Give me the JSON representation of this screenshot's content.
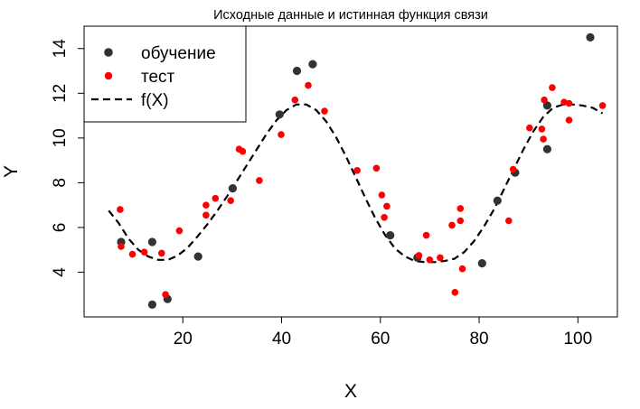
{
  "chart_data": {
    "type": "scatter",
    "title": "Исходные данные и истинная функция связи",
    "xlabel": "X",
    "ylabel": "Y",
    "xlim": [
      0,
      108
    ],
    "ylim": [
      2,
      15
    ],
    "xticks": [
      20,
      40,
      60,
      80,
      100
    ],
    "yticks": [
      4,
      6,
      8,
      10,
      12,
      14
    ],
    "grid": false,
    "legend_position": "top-left",
    "series": [
      {
        "name": "обучение",
        "kind": "points",
        "color": "#333333",
        "points": [
          [
            7.5,
            5.35
          ],
          [
            13.8,
            5.35
          ],
          [
            13.8,
            2.55
          ],
          [
            16.9,
            2.8
          ],
          [
            23.1,
            4.7
          ],
          [
            30.1,
            7.75
          ],
          [
            39.6,
            11.05
          ],
          [
            43.1,
            13.0
          ],
          [
            46.3,
            13.3
          ],
          [
            67.5,
            4.65
          ],
          [
            62.0,
            5.65
          ],
          [
            80.6,
            4.4
          ],
          [
            83.7,
            7.2
          ],
          [
            87.3,
            8.45
          ],
          [
            93.8,
            11.45
          ],
          [
            93.8,
            9.5
          ],
          [
            102.5,
            14.5
          ]
        ]
      },
      {
        "name": "тест",
        "kind": "points",
        "color": "#ff0000",
        "points": [
          [
            7.3,
            6.8
          ],
          [
            7.5,
            5.15
          ],
          [
            9.8,
            4.8
          ],
          [
            12.2,
            4.9
          ],
          [
            15.7,
            4.85
          ],
          [
            16.5,
            3.0
          ],
          [
            19.3,
            5.85
          ],
          [
            24.7,
            7.0
          ],
          [
            24.7,
            6.55
          ],
          [
            26.6,
            7.3
          ],
          [
            29.7,
            7.2
          ],
          [
            31.4,
            9.5
          ],
          [
            32.1,
            9.4
          ],
          [
            35.5,
            8.1
          ],
          [
            39.9,
            10.15
          ],
          [
            42.7,
            11.7
          ],
          [
            45.4,
            12.35
          ],
          [
            48.7,
            11.2
          ],
          [
            55.3,
            8.55
          ],
          [
            59.2,
            8.65
          ],
          [
            60.3,
            7.45
          ],
          [
            60.8,
            6.45
          ],
          [
            61.3,
            6.95
          ],
          [
            67.8,
            4.75
          ],
          [
            69.3,
            5.65
          ],
          [
            70.0,
            4.55
          ],
          [
            72.1,
            4.65
          ],
          [
            74.5,
            6.1
          ],
          [
            75.1,
            3.1
          ],
          [
            76.2,
            6.85
          ],
          [
            76.2,
            6.3
          ],
          [
            76.6,
            4.15
          ],
          [
            86.0,
            6.3
          ],
          [
            86.9,
            8.6
          ],
          [
            90.2,
            10.45
          ],
          [
            92.7,
            10.4
          ],
          [
            93.0,
            9.95
          ],
          [
            93.2,
            11.7
          ],
          [
            94.8,
            12.25
          ],
          [
            97.2,
            11.6
          ],
          [
            98.2,
            11.55
          ],
          [
            98.2,
            10.8
          ],
          [
            105.0,
            11.45
          ]
        ]
      },
      {
        "name": "f(X)",
        "kind": "line",
        "style": "dashed",
        "color": "#000000",
        "points": [
          [
            5.0,
            6.75
          ],
          [
            7.0,
            6.2
          ],
          [
            9.0,
            5.5
          ],
          [
            11.0,
            5.0
          ],
          [
            13.0,
            4.7
          ],
          [
            15.0,
            4.55
          ],
          [
            17.0,
            4.55
          ],
          [
            19.0,
            4.75
          ],
          [
            21.0,
            5.1
          ],
          [
            23.0,
            5.6
          ],
          [
            25.0,
            6.15
          ],
          [
            27.0,
            6.75
          ],
          [
            29.0,
            7.4
          ],
          [
            31.0,
            8.1
          ],
          [
            33.0,
            8.8
          ],
          [
            35.0,
            9.5
          ],
          [
            37.0,
            10.2
          ],
          [
            39.0,
            10.8
          ],
          [
            41.0,
            11.25
          ],
          [
            43.0,
            11.5
          ],
          [
            45.0,
            11.5
          ],
          [
            47.0,
            11.25
          ],
          [
            49.0,
            10.75
          ],
          [
            51.0,
            10.05
          ],
          [
            53.0,
            9.2
          ],
          [
            55.0,
            8.25
          ],
          [
            57.0,
            7.3
          ],
          [
            59.0,
            6.4
          ],
          [
            61.0,
            5.65
          ],
          [
            63.0,
            5.05
          ],
          [
            65.0,
            4.7
          ],
          [
            67.0,
            4.5
          ],
          [
            69.0,
            4.45
          ],
          [
            71.0,
            4.45
          ],
          [
            73.0,
            4.5
          ],
          [
            75.0,
            4.6
          ],
          [
            77.0,
            4.9
          ],
          [
            79.0,
            5.4
          ],
          [
            81.0,
            6.05
          ],
          [
            83.0,
            6.8
          ],
          [
            85.0,
            7.7
          ],
          [
            87.0,
            8.6
          ],
          [
            89.0,
            9.5
          ],
          [
            91.0,
            10.3
          ],
          [
            93.0,
            10.95
          ],
          [
            95.0,
            11.35
          ],
          [
            97.0,
            11.5
          ],
          [
            99.0,
            11.5
          ],
          [
            101.0,
            11.45
          ],
          [
            103.0,
            11.35
          ],
          [
            105.0,
            11.1
          ]
        ]
      }
    ]
  }
}
